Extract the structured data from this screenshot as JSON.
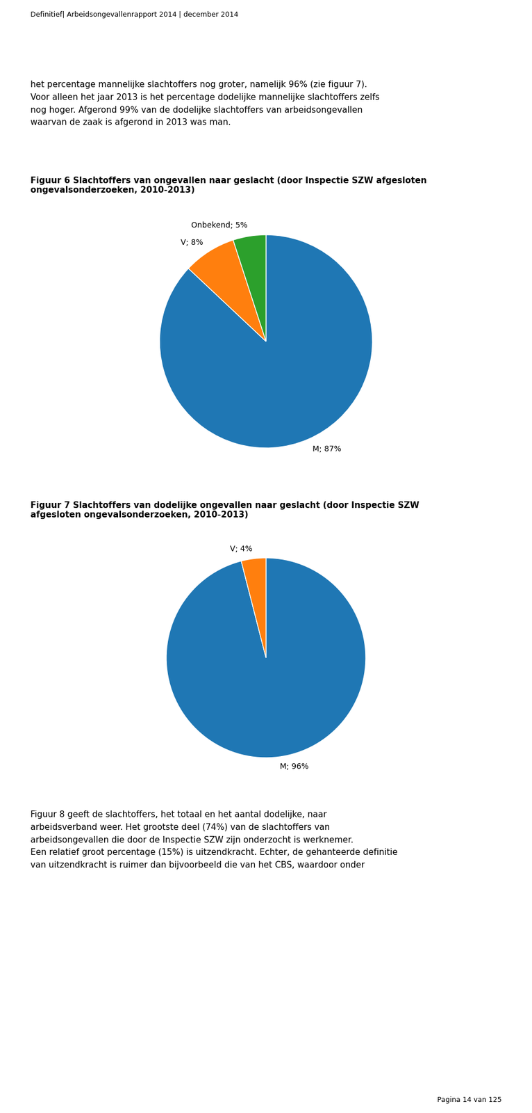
{
  "chart_data": [
    {
      "type": "pie",
      "title": "Figuur 6 Slachtoffers van ongevallen naar geslacht (door Inspectie SZW afgesloten\nongevalsonderzoeken, 2010-2013)",
      "values": [
        87,
        8,
        5
      ],
      "value_labels": [
        "M; 87%",
        "V; 8%",
        "Onbekend; 5%"
      ],
      "data_labels": true,
      "annotations": [
        "Definitief| Arbeidsongevallenrapport 2014 | december 2014",
        "het percentage mannelijke slachtoffers nog groter, namelijk 96% (zie figuur 7).\nVoor alleen het jaar 2013 is het percentage dodelijke mannelijke slachtoffers zelfs\nnog hoger. Afgerond 99% van de dodelijke slachtoffers van arbeidsongevallen\nwaarvan de zaak is afgerond in 2013 was man."
      ]
    },
    {
      "type": "pie",
      "title": "Figuur 7 Slachtoffers van dodelijke ongevallen naar geslacht (door Inspectie SZW\nafgesloten ongevalsonderzoeken, 2010-2013)",
      "values": [
        96,
        4
      ],
      "value_labels": [
        "M; 96%",
        "V; 4%"
      ],
      "data_labels": true,
      "annotations": [
        "Figuur 8 geeft de slachtoffers, het totaal en het aantal dodelijke, naar\narbeidsverband weer. Het grootste deel (74%) van de slachtoffers van\narbeidsongevallen die door de Inspectie SZW zijn onderzocht is werknemer.\nEen relatief groot percentage (15%) is uitzendkracht. Echter, de gehanteerde definitie\nvan uitzendkracht is ruimer dan bijvoorbeeld die van het CBS, waardoor onder",
        "Pagina 14 van 125"
      ]
    }
  ]
}
